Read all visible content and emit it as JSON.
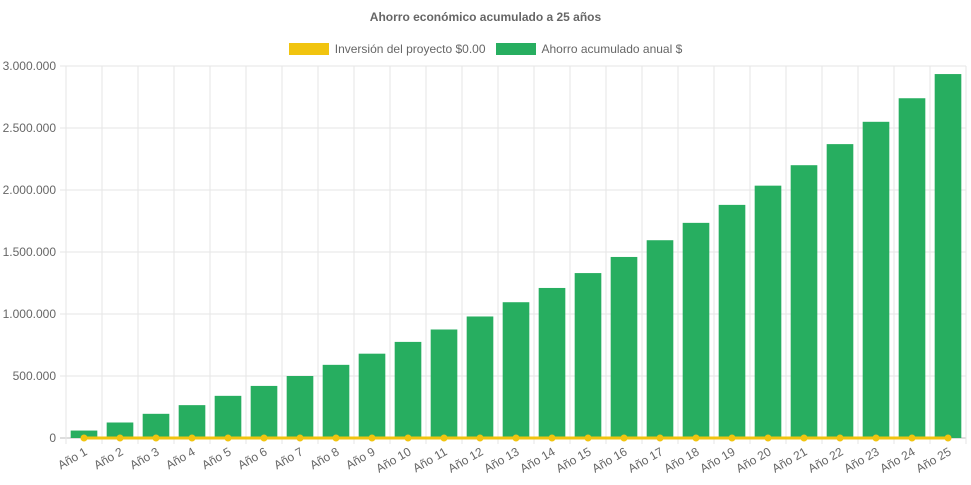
{
  "chart_data": {
    "type": "bar",
    "title": "Ahorro económico acumulado a 25 años",
    "categories": [
      "Año 1",
      "Año 2",
      "Año 3",
      "Año 4",
      "Año 5",
      "Año 6",
      "Año 7",
      "Año 8",
      "Año 9",
      "Año 10",
      "Año 11",
      "Año 12",
      "Año 13",
      "Año 14",
      "Año 15",
      "Año 16",
      "Año 17",
      "Año 18",
      "Año 19",
      "Año 20",
      "Año 21",
      "Año 22",
      "Año 23",
      "Año 24",
      "Año 25"
    ],
    "series": [
      {
        "name": "Inversión del proyecto $0.00",
        "type": "line",
        "color": "#f1c40f",
        "values": [
          0,
          0,
          0,
          0,
          0,
          0,
          0,
          0,
          0,
          0,
          0,
          0,
          0,
          0,
          0,
          0,
          0,
          0,
          0,
          0,
          0,
          0,
          0,
          0,
          0
        ]
      },
      {
        "name": "Ahorro acumulado anual $",
        "type": "bar",
        "color": "#27ae60",
        "values": [
          60000,
          125000,
          195000,
          265000,
          340000,
          420000,
          500000,
          590000,
          680000,
          775000,
          875000,
          980000,
          1095000,
          1210000,
          1330000,
          1460000,
          1595000,
          1735000,
          1880000,
          2035000,
          2200000,
          2370000,
          2550000,
          2740000,
          2935000
        ]
      }
    ],
    "yticks": [
      "0",
      "500.000",
      "1.000.000",
      "1.500.000",
      "2.000.000",
      "2.500.000",
      "3.000.000"
    ],
    "ylim": [
      0,
      3000000
    ],
    "grid": true,
    "legend_position": "top"
  }
}
